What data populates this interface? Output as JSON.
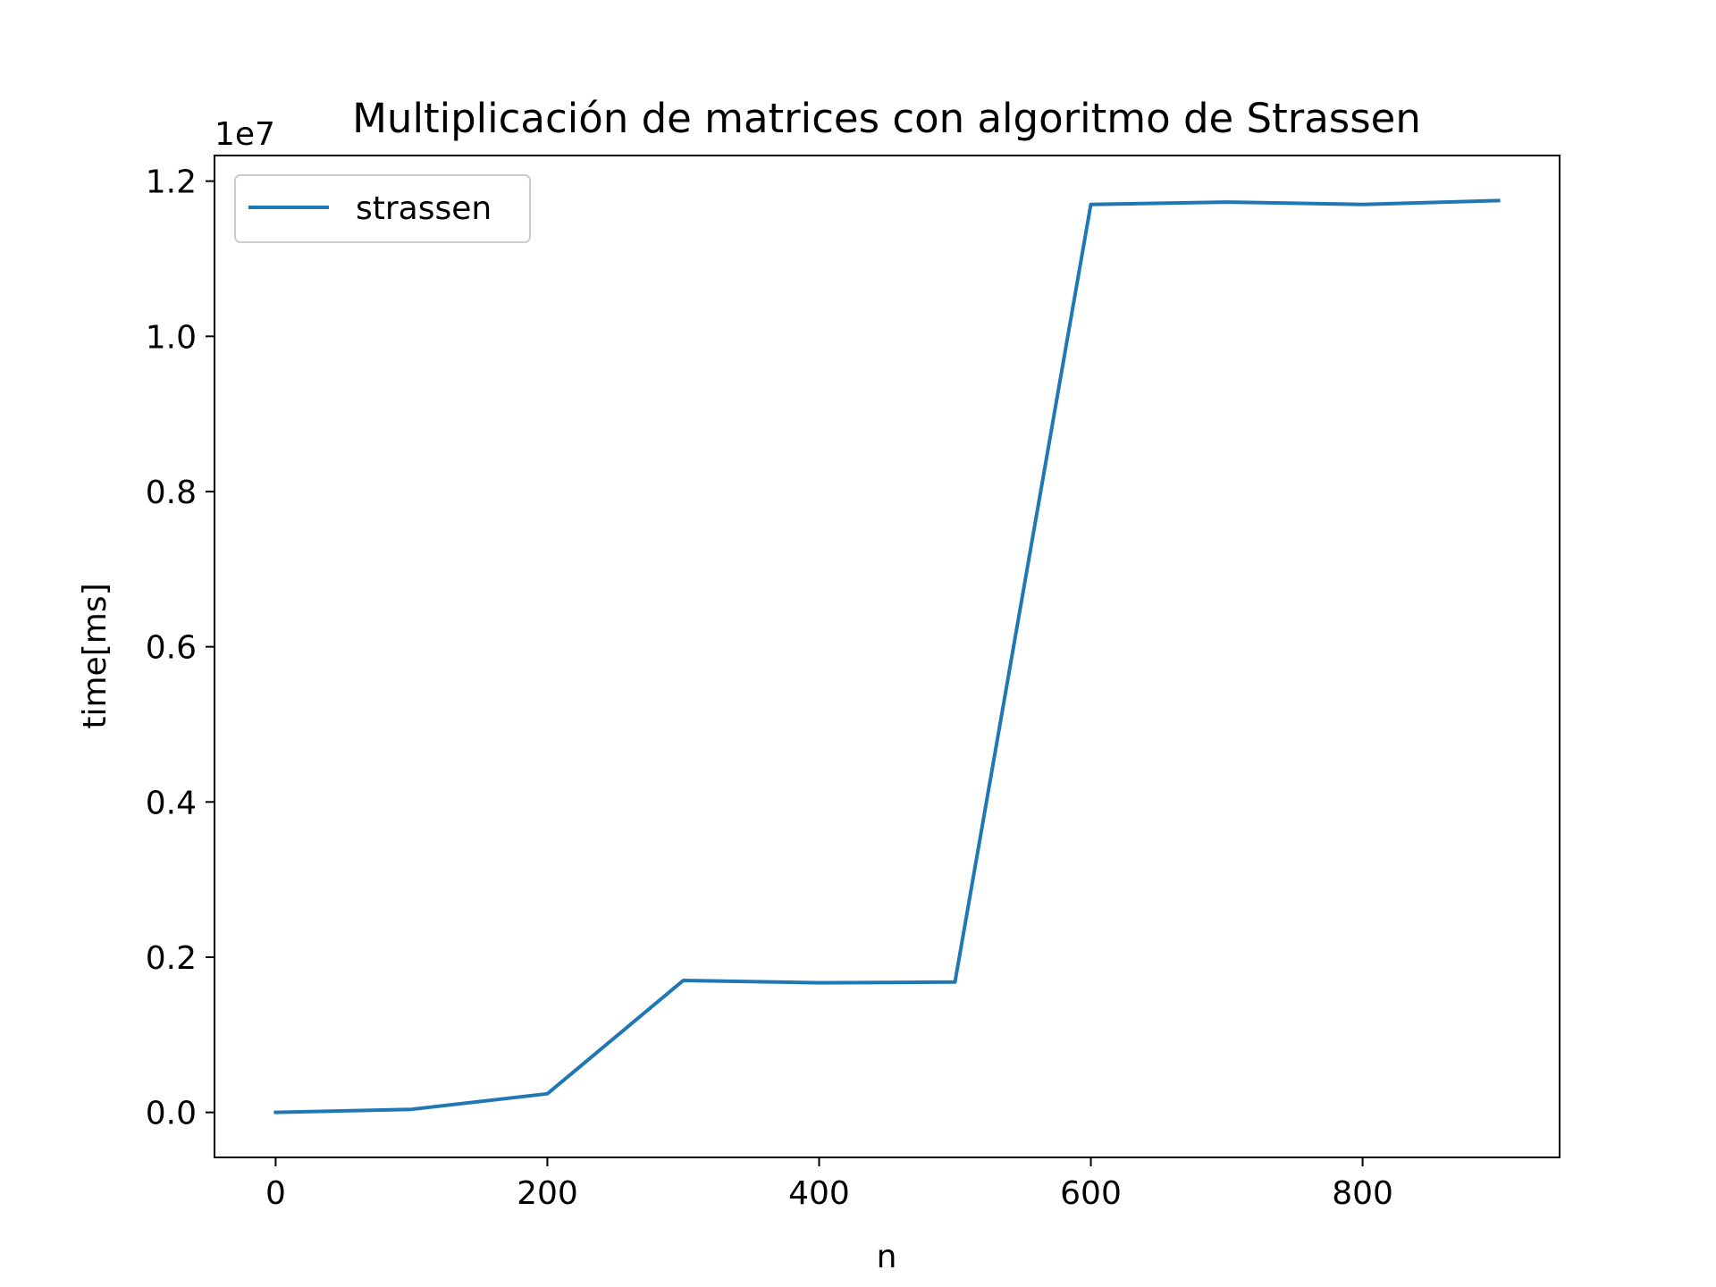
{
  "chart_data": {
    "type": "line",
    "title": "Multiplicación de matrices con algoritmo de Strassen",
    "xlabel": "n",
    "ylabel": "time[ms]",
    "y_offset_label": "1e7",
    "x": [
      0,
      100,
      200,
      300,
      400,
      500,
      600,
      700,
      800,
      900
    ],
    "series": [
      {
        "name": "strassen",
        "color": "#1f77b4",
        "values": [
          0,
          40000,
          240000,
          1700000,
          1670000,
          1680000,
          11700000,
          11730000,
          11700000,
          11750000
        ]
      }
    ],
    "xlim": [
      -45,
      945
    ],
    "ylim": [
      -580000,
      12330000
    ],
    "xticks": [
      0,
      200,
      400,
      600,
      800
    ],
    "xtick_labels": [
      "0",
      "200",
      "400",
      "600",
      "800"
    ],
    "yticks": [
      0,
      2000000,
      4000000,
      6000000,
      8000000,
      10000000,
      12000000
    ],
    "ytick_labels": [
      "0.0",
      "0.2",
      "0.4",
      "0.6",
      "0.8",
      "1.0",
      "1.2"
    ],
    "grid": false,
    "legend_position": "top-left"
  }
}
